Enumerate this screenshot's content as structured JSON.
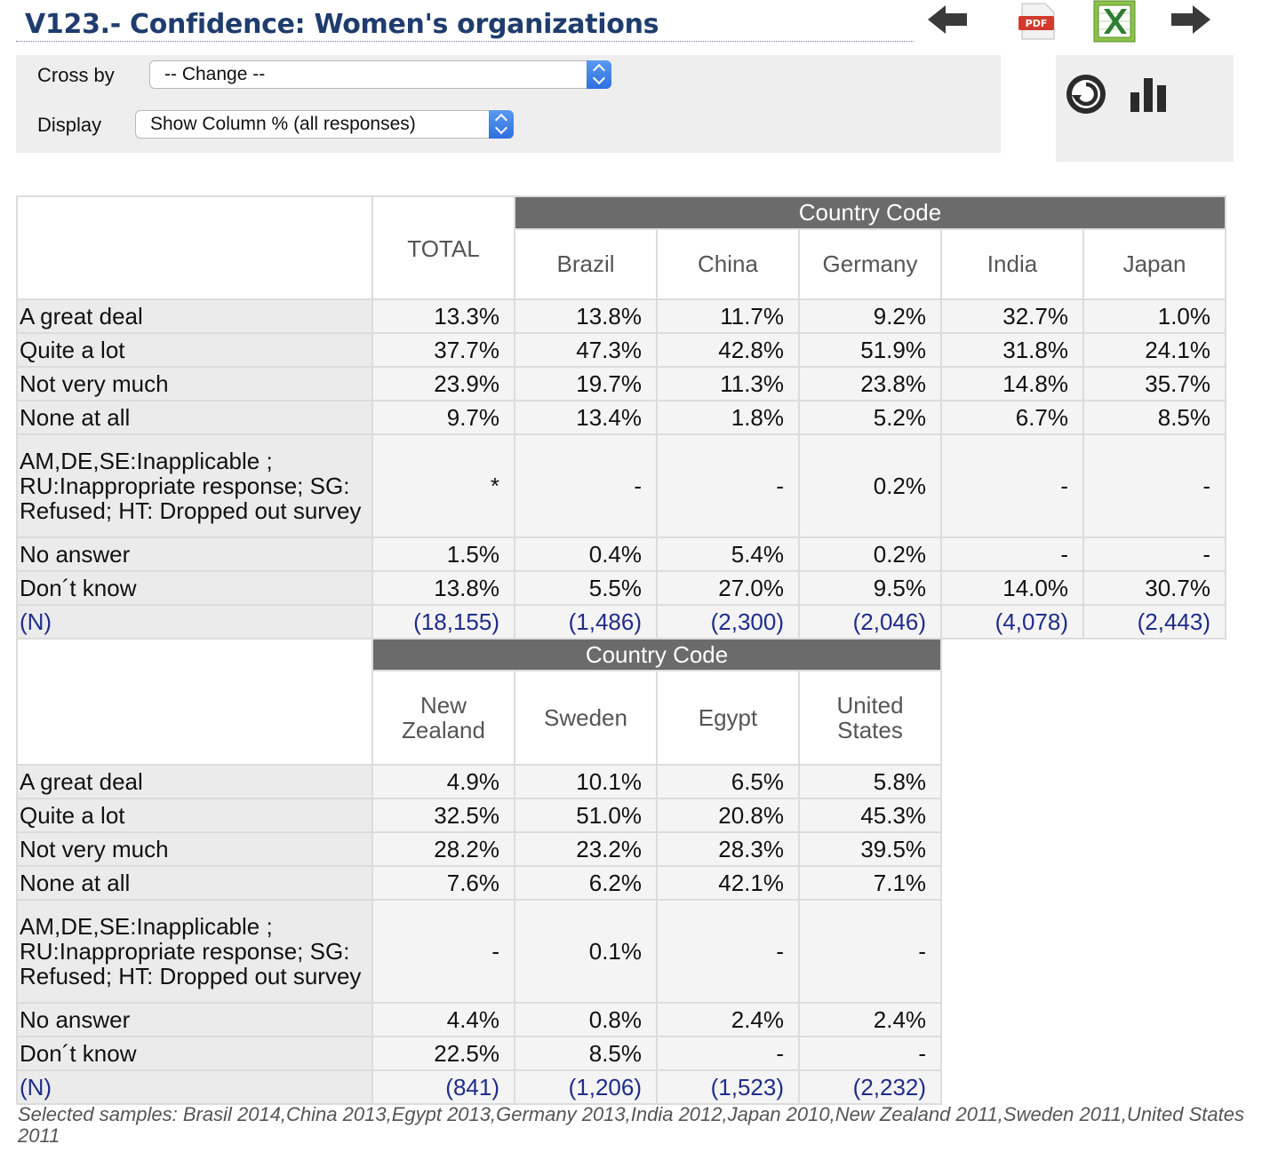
{
  "title": "V123.- Confidence: Women's organizations",
  "toolbar": {
    "back": "back-arrow-icon",
    "pdf": "pdf-icon",
    "pdf_label": "PDF",
    "excel": "excel-icon",
    "forward": "forward-arrow-icon",
    "refresh": "refresh-icon",
    "chart": "bar-chart-icon"
  },
  "controls": {
    "crossby_label": "Cross by",
    "crossby_value": "-- Change --",
    "display_label": "Display",
    "display_value": "Show Column % (all responses)"
  },
  "table1": {
    "group_header": "Country Code",
    "total_header": "TOTAL",
    "columns": [
      "Brazil",
      "China",
      "Germany",
      "India",
      "Japan"
    ],
    "rows": [
      {
        "label": "A great deal",
        "values": [
          "13.3%",
          "13.8%",
          "11.7%",
          "9.2%",
          "32.7%",
          "1.0%"
        ]
      },
      {
        "label": "Quite a lot",
        "values": [
          "37.7%",
          "47.3%",
          "42.8%",
          "51.9%",
          "31.8%",
          "24.1%"
        ]
      },
      {
        "label": "Not very much",
        "values": [
          "23.9%",
          "19.7%",
          "11.3%",
          "23.8%",
          "14.8%",
          "35.7%"
        ]
      },
      {
        "label": "None at all",
        "values": [
          "9.7%",
          "13.4%",
          "1.8%",
          "5.2%",
          "6.7%",
          "8.5%"
        ]
      },
      {
        "label": "AM,DE,SE:Inapplicable ; RU:Inappropriate response; SG: Refused; HT: Dropped out survey",
        "values": [
          "*",
          "-",
          "-",
          "0.2%",
          "-",
          "-"
        ]
      },
      {
        "label": "No answer",
        "values": [
          "1.5%",
          "0.4%",
          "5.4%",
          "0.2%",
          "-",
          "-"
        ]
      },
      {
        "label": "Don´t know",
        "values": [
          "13.8%",
          "5.5%",
          "27.0%",
          "9.5%",
          "14.0%",
          "30.7%"
        ]
      },
      {
        "label": "(N)",
        "values": [
          "(18,155)",
          "(1,486)",
          "(2,300)",
          "(2,046)",
          "(4,078)",
          "(2,443)"
        ]
      }
    ]
  },
  "table2": {
    "group_header": "Country Code",
    "columns": [
      "New Zealand",
      "Sweden",
      "Egypt",
      "United States"
    ],
    "rows": [
      {
        "label": "A great deal",
        "values": [
          "4.9%",
          "10.1%",
          "6.5%",
          "5.8%"
        ]
      },
      {
        "label": "Quite a lot",
        "values": [
          "32.5%",
          "51.0%",
          "20.8%",
          "45.3%"
        ]
      },
      {
        "label": "Not very much",
        "values": [
          "28.2%",
          "23.2%",
          "28.3%",
          "39.5%"
        ]
      },
      {
        "label": "None at all",
        "values": [
          "7.6%",
          "6.2%",
          "42.1%",
          "7.1%"
        ]
      },
      {
        "label": "AM,DE,SE:Inapplicable ; RU:Inappropriate response; SG: Refused; HT: Dropped out survey",
        "values": [
          "-",
          "0.1%",
          "-",
          "-"
        ]
      },
      {
        "label": "No answer",
        "values": [
          "4.4%",
          "0.8%",
          "2.4%",
          "2.4%"
        ]
      },
      {
        "label": "Don´t know",
        "values": [
          "22.5%",
          "8.5%",
          "-",
          "-"
        ]
      },
      {
        "label": "(N)",
        "values": [
          "(841)",
          "(1,206)",
          "(1,523)",
          "(2,232)"
        ]
      }
    ]
  },
  "footer": "Selected samples: Brasil 2014,China 2013,Egypt 2013,Germany 2013,India 2012,Japan 2010,New Zealand 2011,Sweden 2011,United States 2011"
}
